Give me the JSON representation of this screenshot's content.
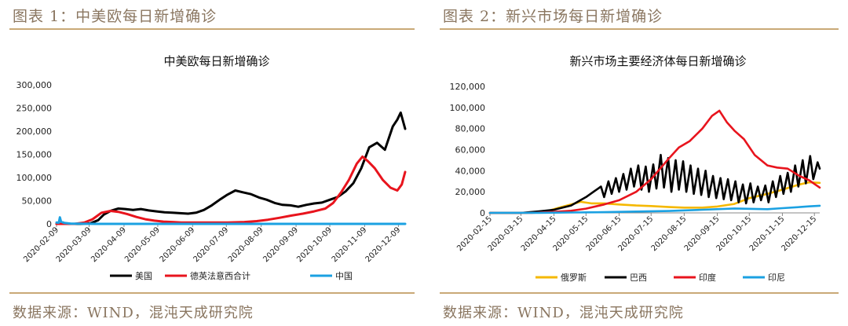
{
  "panels": [
    {
      "figure_title": "图表 1：中美欧每日新增确诊",
      "source": "数据来源：WIND，混沌天成研究院"
    },
    {
      "figure_title": "图表 2：新兴市场每日新增确诊",
      "source": "数据来源：WIND，混沌天成研究院"
    }
  ],
  "chart_data": [
    {
      "type": "line",
      "title": "中美欧每日新增确诊",
      "xlabel": "",
      "ylabel": "",
      "ylim": [
        0,
        300000
      ],
      "yticks": [
        0,
        50000,
        100000,
        150000,
        200000,
        250000,
        300000
      ],
      "ytick_labels": [
        "0",
        "50,000",
        "100,000",
        "150,000",
        "200,000",
        "250,000",
        "300,000"
      ],
      "xticks": [
        "2020-02-09",
        "2020-03-09",
        "2020-04-09",
        "2020-05-09",
        "2020-06-09",
        "2020-07-09",
        "2020-08-09",
        "2020-09-09",
        "2020-10-09",
        "2020-11-09",
        "2020-12-09"
      ],
      "x_start": "2020-02-09",
      "x_end": "2020-12-15",
      "grid": false,
      "legend_position": "bottom",
      "series": [
        {
          "name": "美国",
          "color": "#000000",
          "points": [
            [
              "2020-02-09",
              0
            ],
            [
              "2020-03-01",
              0
            ],
            [
              "2020-03-10",
              1000
            ],
            [
              "2020-03-17",
              8000
            ],
            [
              "2020-03-22",
              20000
            ],
            [
              "2020-03-28",
              28000
            ],
            [
              "2020-04-04",
              33000
            ],
            [
              "2020-04-10",
              32000
            ],
            [
              "2020-04-17",
              30000
            ],
            [
              "2020-04-24",
              32000
            ],
            [
              "2020-05-01",
              29000
            ],
            [
              "2020-05-08",
              27000
            ],
            [
              "2020-05-15",
              25000
            ],
            [
              "2020-05-22",
              24000
            ],
            [
              "2020-05-29",
              23000
            ],
            [
              "2020-06-05",
              22000
            ],
            [
              "2020-06-12",
              24000
            ],
            [
              "2020-06-19",
              30000
            ],
            [
              "2020-06-26",
              40000
            ],
            [
              "2020-07-03",
              52000
            ],
            [
              "2020-07-10",
              63000
            ],
            [
              "2020-07-17",
              72000
            ],
            [
              "2020-07-24",
              68000
            ],
            [
              "2020-07-31",
              64000
            ],
            [
              "2020-08-07",
              57000
            ],
            [
              "2020-08-14",
              52000
            ],
            [
              "2020-08-21",
              45000
            ],
            [
              "2020-08-28",
              41000
            ],
            [
              "2020-09-04",
              40000
            ],
            [
              "2020-09-11",
              37000
            ],
            [
              "2020-09-18",
              41000
            ],
            [
              "2020-09-25",
              44000
            ],
            [
              "2020-10-02",
              46000
            ],
            [
              "2020-10-09",
              52000
            ],
            [
              "2020-10-16",
              58000
            ],
            [
              "2020-10-23",
              70000
            ],
            [
              "2020-10-30",
              88000
            ],
            [
              "2020-11-06",
              120000
            ],
            [
              "2020-11-13",
              165000
            ],
            [
              "2020-11-20",
              175000
            ],
            [
              "2020-11-27",
              160000
            ],
            [
              "2020-12-04",
              210000
            ],
            [
              "2020-12-08",
              225000
            ],
            [
              "2020-12-11",
              240000
            ],
            [
              "2020-12-15",
              205000
            ]
          ]
        },
        {
          "name": "德英法意西合计",
          "color": "#e8141d",
          "points": [
            [
              "2020-02-09",
              0
            ],
            [
              "2020-02-25",
              0
            ],
            [
              "2020-03-05",
              3000
            ],
            [
              "2020-03-12",
              10000
            ],
            [
              "2020-03-20",
              24000
            ],
            [
              "2020-03-28",
              28000
            ],
            [
              "2020-04-04",
              26000
            ],
            [
              "2020-04-12",
              21000
            ],
            [
              "2020-04-20",
              15000
            ],
            [
              "2020-04-28",
              10000
            ],
            [
              "2020-05-06",
              7000
            ],
            [
              "2020-05-14",
              5000
            ],
            [
              "2020-05-22",
              4000
            ],
            [
              "2020-05-30",
              3000
            ],
            [
              "2020-06-10",
              3000
            ],
            [
              "2020-06-25",
              3000
            ],
            [
              "2020-07-10",
              3000
            ],
            [
              "2020-07-25",
              4000
            ],
            [
              "2020-08-05",
              6000
            ],
            [
              "2020-08-15",
              9000
            ],
            [
              "2020-08-25",
              13000
            ],
            [
              "2020-09-05",
              18000
            ],
            [
              "2020-09-15",
              22000
            ],
            [
              "2020-09-25",
              27000
            ],
            [
              "2020-10-05",
              33000
            ],
            [
              "2020-10-12",
              45000
            ],
            [
              "2020-10-19",
              68000
            ],
            [
              "2020-10-26",
              95000
            ],
            [
              "2020-11-02",
              130000
            ],
            [
              "2020-11-07",
              145000
            ],
            [
              "2020-11-12",
              135000
            ],
            [
              "2020-11-18",
              120000
            ],
            [
              "2020-11-25",
              95000
            ],
            [
              "2020-12-02",
              78000
            ],
            [
              "2020-12-08",
              72000
            ],
            [
              "2020-12-12",
              85000
            ],
            [
              "2020-12-15",
              112000
            ]
          ]
        },
        {
          "name": "中国",
          "color": "#1ba1e2",
          "points": [
            [
              "2020-02-09",
              3000
            ],
            [
              "2020-02-11",
              2500
            ],
            [
              "2020-02-12",
              14000
            ],
            [
              "2020-02-13",
              5000
            ],
            [
              "2020-02-16",
              2000
            ],
            [
              "2020-02-22",
              500
            ],
            [
              "2020-03-01",
              300
            ],
            [
              "2020-03-15",
              50
            ],
            [
              "2020-04-15",
              40
            ],
            [
              "2020-06-15",
              30
            ],
            [
              "2020-08-15",
              30
            ],
            [
              "2020-10-15",
              20
            ],
            [
              "2020-12-15",
              20
            ]
          ]
        }
      ]
    },
    {
      "type": "line",
      "title": "新兴市场主要经济体每日新增确诊",
      "xlabel": "",
      "ylabel": "",
      "ylim": [
        0,
        120000
      ],
      "yticks": [
        0,
        20000,
        40000,
        60000,
        80000,
        100000,
        120000
      ],
      "ytick_labels": [
        "0",
        "20,000",
        "40,000",
        "60,000",
        "80,000",
        "100,000",
        "120,000"
      ],
      "xticks": [
        "2020-02-15",
        "2020-03-15",
        "2020-04-15",
        "2020-05-15",
        "2020-06-15",
        "2020-07-15",
        "2020-08-15",
        "2020-09-15",
        "2020-10-15",
        "2020-11-15",
        "2020-12-15"
      ],
      "x_start": "2020-02-15",
      "x_end": "2020-12-20",
      "grid": false,
      "legend_position": "bottom",
      "series": [
        {
          "name": "俄罗斯",
          "color": "#f5b800",
          "points": [
            [
              "2020-02-15",
              0
            ],
            [
              "2020-03-20",
              0
            ],
            [
              "2020-04-10",
              2000
            ],
            [
              "2020-04-20",
              5000
            ],
            [
              "2020-05-01",
              8000
            ],
            [
              "2020-05-10",
              10500
            ],
            [
              "2020-05-20",
              9000
            ],
            [
              "2020-06-01",
              9000
            ],
            [
              "2020-06-15",
              8000
            ],
            [
              "2020-07-01",
              7000
            ],
            [
              "2020-07-15",
              6500
            ],
            [
              "2020-08-01",
              5500
            ],
            [
              "2020-08-15",
              5000
            ],
            [
              "2020-09-01",
              5000
            ],
            [
              "2020-09-15",
              6000
            ],
            [
              "2020-10-01",
              8500
            ],
            [
              "2020-10-15",
              14000
            ],
            [
              "2020-11-01",
              18000
            ],
            [
              "2020-11-15",
              22000
            ],
            [
              "2020-12-01",
              27000
            ],
            [
              "2020-12-10",
              29000
            ],
            [
              "2020-12-20",
              28500
            ]
          ]
        },
        {
          "name": "巴西",
          "color": "#000000",
          "points": [
            [
              "2020-02-15",
              0
            ],
            [
              "2020-03-15",
              0
            ],
            [
              "2020-04-01",
              1500
            ],
            [
              "2020-04-15",
              3000
            ],
            [
              "2020-05-01",
              7000
            ],
            [
              "2020-05-08",
              11000
            ],
            [
              "2020-05-15",
              15000
            ],
            [
              "2020-05-22",
              20000
            ],
            [
              "2020-05-29",
              25000
            ],
            [
              "2020-06-01",
              15000
            ],
            [
              "2020-06-05",
              30000
            ],
            [
              "2020-06-08",
              18000
            ],
            [
              "2020-06-12",
              33000
            ],
            [
              "2020-06-15",
              20000
            ],
            [
              "2020-06-19",
              37000
            ],
            [
              "2020-06-22",
              22000
            ],
            [
              "2020-06-26",
              42000
            ],
            [
              "2020-06-29",
              25000
            ],
            [
              "2020-07-03",
              45000
            ],
            [
              "2020-07-06",
              22000
            ],
            [
              "2020-07-10",
              44000
            ],
            [
              "2020-07-13",
              20000
            ],
            [
              "2020-07-17",
              46000
            ],
            [
              "2020-07-20",
              23000
            ],
            [
              "2020-07-24",
              55000
            ],
            [
              "2020-07-27",
              24000
            ],
            [
              "2020-07-31",
              52000
            ],
            [
              "2020-08-03",
              20000
            ],
            [
              "2020-08-07",
              50000
            ],
            [
              "2020-08-10",
              22000
            ],
            [
              "2020-08-14",
              49000
            ],
            [
              "2020-08-17",
              20000
            ],
            [
              "2020-08-21",
              45000
            ],
            [
              "2020-08-24",
              18000
            ],
            [
              "2020-08-28",
              42000
            ],
            [
              "2020-08-31",
              17000
            ],
            [
              "2020-09-04",
              40000
            ],
            [
              "2020-09-07",
              15000
            ],
            [
              "2020-09-11",
              35000
            ],
            [
              "2020-09-14",
              14000
            ],
            [
              "2020-09-18",
              33000
            ],
            [
              "2020-09-21",
              13000
            ],
            [
              "2020-09-25",
              32000
            ],
            [
              "2020-09-28",
              12000
            ],
            [
              "2020-10-02",
              30000
            ],
            [
              "2020-10-05",
              10000
            ],
            [
              "2020-10-09",
              27000
            ],
            [
              "2020-10-12",
              9000
            ],
            [
              "2020-10-16",
              28000
            ],
            [
              "2020-10-19",
              10000
            ],
            [
              "2020-10-23",
              25000
            ],
            [
              "2020-10-26",
              12000
            ],
            [
              "2020-10-30",
              26000
            ],
            [
              "2020-11-02",
              10000
            ],
            [
              "2020-11-06",
              30000
            ],
            [
              "2020-11-09",
              15000
            ],
            [
              "2020-11-13",
              35000
            ],
            [
              "2020-11-16",
              18000
            ],
            [
              "2020-11-20",
              38000
            ],
            [
              "2020-11-23",
              20000
            ],
            [
              "2020-11-27",
              45000
            ],
            [
              "2020-11-30",
              25000
            ],
            [
              "2020-12-04",
              50000
            ],
            [
              "2020-12-07",
              28000
            ],
            [
              "2020-12-11",
              54000
            ],
            [
              "2020-12-14",
              32000
            ],
            [
              "2020-12-18",
              48000
            ],
            [
              "2020-12-20",
              42000
            ]
          ]
        },
        {
          "name": "印度",
          "color": "#e8141d",
          "points": [
            [
              "2020-02-15",
              0
            ],
            [
              "2020-03-25",
              0
            ],
            [
              "2020-04-15",
              1000
            ],
            [
              "2020-05-01",
              2000
            ],
            [
              "2020-05-15",
              4000
            ],
            [
              "2020-06-01",
              8000
            ],
            [
              "2020-06-15",
              12000
            ],
            [
              "2020-07-01",
              20000
            ],
            [
              "2020-07-15",
              32000
            ],
            [
              "2020-08-01",
              52000
            ],
            [
              "2020-08-10",
              62000
            ],
            [
              "2020-08-20",
              68000
            ],
            [
              "2020-09-01",
              80000
            ],
            [
              "2020-09-10",
              92000
            ],
            [
              "2020-09-17",
              97000
            ],
            [
              "2020-09-24",
              86000
            ],
            [
              "2020-10-01",
              78000
            ],
            [
              "2020-10-10",
              70000
            ],
            [
              "2020-10-20",
              55000
            ],
            [
              "2020-11-01",
              45000
            ],
            [
              "2020-11-10",
              43000
            ],
            [
              "2020-11-20",
              42000
            ],
            [
              "2020-12-01",
              35000
            ],
            [
              "2020-12-10",
              31000
            ],
            [
              "2020-12-20",
              24000
            ]
          ]
        },
        {
          "name": "印尼",
          "color": "#1ba1e2",
          "points": [
            [
              "2020-02-15",
              0
            ],
            [
              "2020-04-01",
              100
            ],
            [
              "2020-05-01",
              400
            ],
            [
              "2020-06-01",
              700
            ],
            [
              "2020-07-01",
              1300
            ],
            [
              "2020-08-01",
              1800
            ],
            [
              "2020-09-01",
              3000
            ],
            [
              "2020-10-01",
              4200
            ],
            [
              "2020-11-01",
              3500
            ],
            [
              "2020-11-15",
              4500
            ],
            [
              "2020-12-01",
              5500
            ],
            [
              "2020-12-10",
              6200
            ],
            [
              "2020-12-20",
              6800
            ]
          ]
        }
      ]
    }
  ]
}
